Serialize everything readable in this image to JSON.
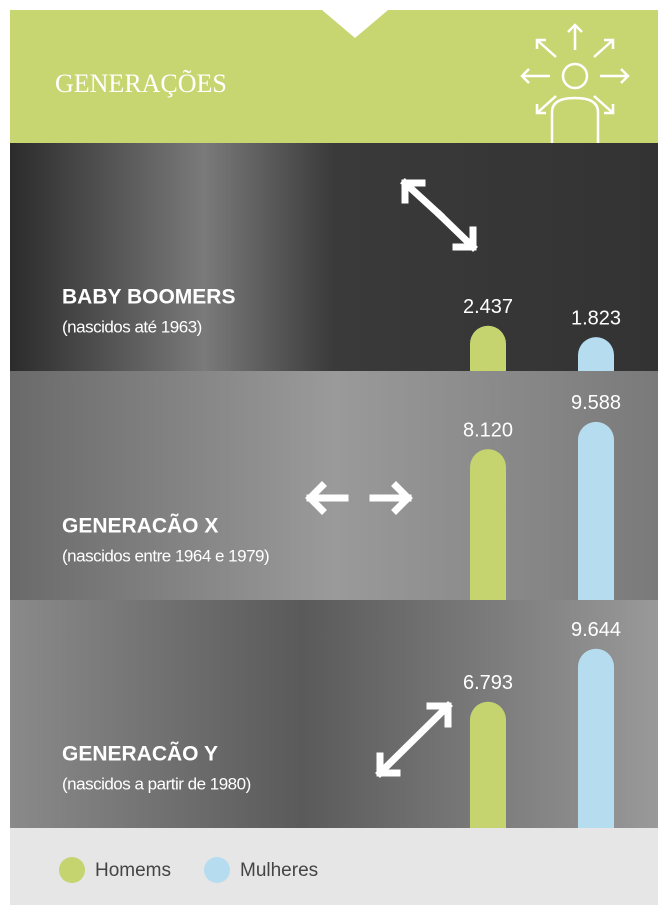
{
  "chart_data": {
    "type": "bar",
    "title": "GENERAÇÕES",
    "categories": [
      "BABY BOOMERS",
      "GENERACÃO X",
      "GENERACÃO Y"
    ],
    "subtitles": [
      "(nascidos até 1963)",
      "(nascidos entre 1964 e 1979)",
      "(nascidos a partir de 1980)"
    ],
    "series": [
      {
        "name": "Homems",
        "color": "#c5d46e",
        "values": [
          2437,
          8120,
          6793
        ],
        "value_labels": [
          "2.437",
          "8.120",
          "6.793"
        ]
      },
      {
        "name": "Mulheres",
        "color": "#b6dcf0",
        "values": [
          1823,
          9588,
          9644
        ],
        "value_labels": [
          "1.823",
          "9.588",
          "9.644"
        ]
      }
    ],
    "ylim": [
      0,
      12000
    ]
  }
}
